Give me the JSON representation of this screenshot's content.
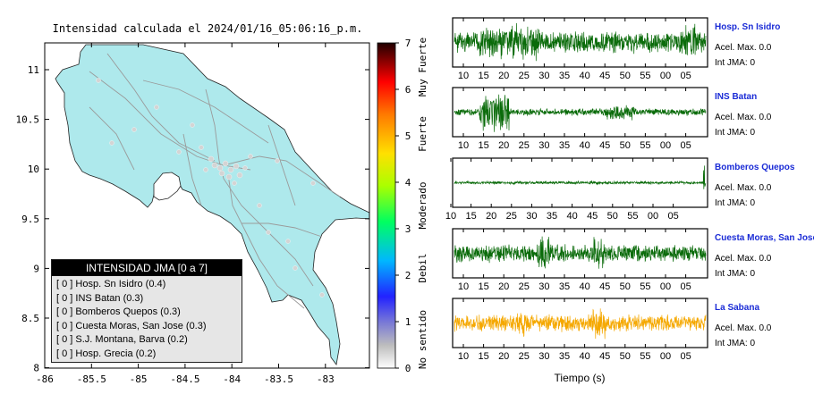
{
  "map": {
    "title": "Intensidad calculada el 2024/01/16_05:06:16_p.m.",
    "x_ticks": [
      "-86",
      "-85.5",
      "-85",
      "-84.5",
      "-84",
      "-83.5",
      "-83"
    ],
    "y_ticks": [
      "11",
      "10.5",
      "10",
      "9.5",
      "9",
      "8.5",
      "8"
    ],
    "land_color": "#aee9ec",
    "sea_color": "#ffffff"
  },
  "colorbar": {
    "ticks": [
      "0",
      "1",
      "2",
      "3",
      "4",
      "5",
      "6",
      "7"
    ],
    "labels": [
      "No sentido",
      "Debil",
      "Moderado",
      "Fuerte",
      "Muy Fuerte"
    ]
  },
  "legend": {
    "title": "INTENSIDAD JMA [0 a 7]",
    "items": [
      "[ 0 ]  Hosp. Sn Isidro (0.4)",
      "[ 0 ]  INS Batan (0.3)",
      "[ 0 ]  Bomberos Quepos (0.3)",
      "[ 0 ]  Cuesta Moras, San Jose (0.3)",
      "[ 0 ]  S.J. Montana, Barva (0.2)",
      "[ 0 ]  Hosp. Grecia (0.2)"
    ]
  },
  "chart_data": {
    "type": "line",
    "xlabel": "Tiempo (s)",
    "x_ticks": [
      "10",
      "15",
      "20",
      "25",
      "30",
      "35",
      "40",
      "45",
      "50",
      "55",
      "00",
      "05"
    ],
    "series": [
      {
        "name": "Hosp. Sn Isidro",
        "color": "#0a6b0a",
        "acel_label": "Acel. Max. 0.0",
        "jma_label": "Int JMA: 0"
      },
      {
        "name": "INS Batan",
        "color": "#0a6b0a",
        "acel_label": "Acel. Max. 0.0",
        "jma_label": "Int JMA: 0"
      },
      {
        "name": "Bomberos Quepos",
        "color": "#0a6b0a",
        "acel_label": "Acel. Max. 0.0",
        "jma_label": "Int JMA: 0"
      },
      {
        "name": "Cuesta Moras, San Jose",
        "color": "#0a6b0a",
        "acel_label": "Acel. Max. 0.0",
        "jma_label": "Int JMA: 0"
      },
      {
        "name": "La Sabana",
        "color": "#f5a800",
        "acel_label": "Acel. Max. 0.0",
        "jma_label": "Int JMA: 0"
      }
    ]
  }
}
